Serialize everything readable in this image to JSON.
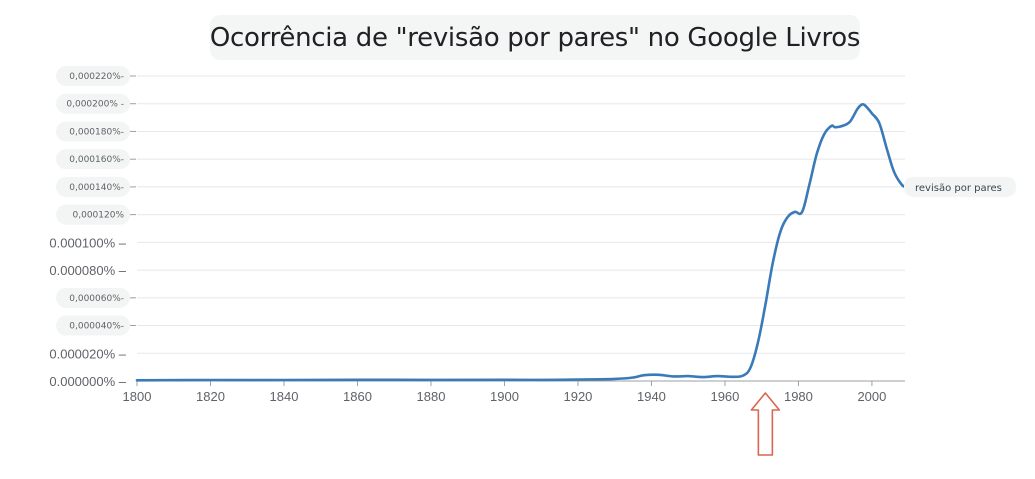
{
  "title": "Ocorrência de \"revisão por pares\" no Google Livros",
  "chart_data": {
    "type": "line",
    "title": "Ocorrência de \"revisão por pares\" no Google Livros",
    "xlabel": "",
    "ylabel": "",
    "xlim": [
      1800,
      2009
    ],
    "ylim": [
      0,
      0.00022
    ],
    "grid": true,
    "x_ticks": [
      "1800",
      "1820",
      "1840",
      "1860",
      "1880",
      "1900",
      "1920",
      "1940",
      "1960",
      "1980",
      "2000"
    ],
    "y_ticks": [
      {
        "value": 0.0,
        "label": "0.000000%",
        "style": "big"
      },
      {
        "value": 2e-05,
        "label": "0.000020%",
        "style": "big"
      },
      {
        "value": 4e-05,
        "label": "0,000040%-",
        "style": "small"
      },
      {
        "value": 6e-05,
        "label": "0,000060%-",
        "style": "small"
      },
      {
        "value": 8e-05,
        "label": "0.000080%",
        "style": "big"
      },
      {
        "value": 0.0001,
        "label": "0.000100%",
        "style": "big"
      },
      {
        "value": 0.00012,
        "label": "0,000120%",
        "style": "small"
      },
      {
        "value": 0.00014,
        "label": "0,000140%-",
        "style": "small"
      },
      {
        "value": 0.00016,
        "label": "0,000160%-",
        "style": "small"
      },
      {
        "value": 0.00018,
        "label": "0,000180%-",
        "style": "small"
      },
      {
        "value": 0.0002,
        "label": "0,000200% -",
        "style": "small"
      },
      {
        "value": 0.00022,
        "label": "0,000220%-",
        "style": "small"
      }
    ],
    "series": [
      {
        "name": "revisão por pares",
        "color": "#3a7ab8",
        "x": [
          1800,
          1820,
          1840,
          1860,
          1880,
          1900,
          1910,
          1920,
          1930,
          1935,
          1938,
          1942,
          1946,
          1950,
          1954,
          1958,
          1962,
          1965,
          1967,
          1969,
          1971,
          1973,
          1975,
          1977,
          1979,
          1981,
          1983,
          1985,
          1987,
          1989,
          1990,
          1992,
          1994,
          1996,
          1997,
          1998,
          2000,
          2002,
          2004,
          2006,
          2008,
          2009
        ],
        "values": [
          5e-07,
          7e-07,
          7e-07,
          9e-07,
          8e-07,
          9e-07,
          8e-07,
          1e-06,
          1.5e-06,
          2.5e-06,
          4.2e-06,
          4.5e-06,
          3.3e-06,
          3.5e-06,
          2.8e-06,
          3.5e-06,
          3e-06,
          4e-06,
          1e-05,
          2.8e-05,
          5.5e-05,
          8.5e-05,
          0.000107,
          0.000118,
          0.000122,
          0.000122,
          0.000142,
          0.000164,
          0.000178,
          0.000184,
          0.000183,
          0.000184,
          0.000187,
          0.000196,
          0.000199,
          0.000199,
          0.000193,
          0.000186,
          0.000168,
          0.000151,
          0.000142,
          0.00014
        ]
      }
    ],
    "annotations": [
      {
        "type": "arrow-up",
        "x": 1971,
        "color": "#d9664f"
      }
    ]
  }
}
